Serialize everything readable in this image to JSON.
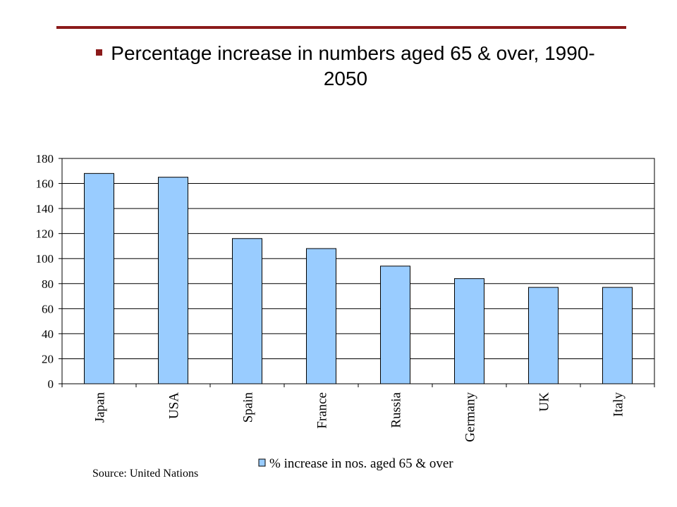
{
  "slide": {
    "title": "Percentage increase in numbers aged 65 & over, 1990-2050",
    "source": "Source: United Nations",
    "accent_color": "#8b1a1a"
  },
  "chart_data": {
    "type": "bar",
    "categories": [
      "Japan",
      "USA",
      "Spain",
      "France",
      "Russia",
      "Germany",
      "UK",
      "Italy"
    ],
    "series": [
      {
        "name": "% increase in nos. aged 65 & over",
        "values": [
          168,
          165,
          116,
          108,
          94,
          84,
          77,
          77
        ],
        "color": "#99ccff"
      }
    ],
    "ylim": [
      0,
      180
    ],
    "yticks": [
      0,
      20,
      40,
      60,
      80,
      100,
      120,
      140,
      160,
      180
    ],
    "grid": true,
    "legend": "bottom",
    "xlabel": "",
    "ylabel": ""
  }
}
